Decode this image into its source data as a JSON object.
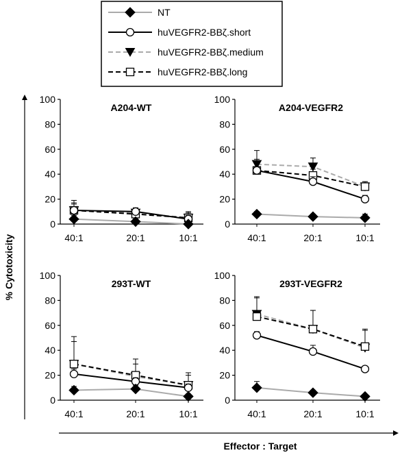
{
  "legend": {
    "entries": [
      {
        "name": "NT",
        "color": "#aaaaaa",
        "marker": "diamond",
        "marker_fill": "#000000",
        "dash": "solid"
      },
      {
        "name": "huVEGFR2-BBζ.short",
        "color": "#000000",
        "marker": "circle",
        "marker_fill": "#ffffff",
        "dash": "solid"
      },
      {
        "name": "huVEGFR2-BBζ.medium",
        "color": "#aaaaaa",
        "marker": "triangle-down",
        "marker_fill": "#000000",
        "dash": "dashed"
      },
      {
        "name": "huVEGFR2-BBζ.long",
        "color": "#000000",
        "marker": "square",
        "marker_fill": "#ffffff",
        "dash": "dashed"
      }
    ]
  },
  "ylabel": "% Cytotoxicity",
  "xlabel": "Effector : Target",
  "chart_data": [
    {
      "type": "line",
      "title": "A204-WT",
      "categories": [
        "40:1",
        "20:1",
        "10:1"
      ],
      "ylim": [
        0,
        100
      ],
      "yticks": [
        0,
        20,
        40,
        60,
        80,
        100
      ],
      "series": [
        {
          "name": "NT",
          "values": [
            4,
            2,
            -2
          ],
          "errors": [
            3,
            2,
            2
          ]
        },
        {
          "name": "huVEGFR2-BBζ.short",
          "values": [
            11,
            10,
            4
          ],
          "errors": [
            6,
            3,
            3
          ]
        },
        {
          "name": "huVEGFR2-BBζ.medium",
          "values": [
            11,
            9,
            5
          ],
          "errors": [
            8,
            4,
            5
          ]
        },
        {
          "name": "huVEGFR2-BBζ.long",
          "values": [
            11,
            8,
            5
          ],
          "errors": [
            5,
            3,
            4
          ]
        }
      ]
    },
    {
      "type": "line",
      "title": "A204-VEGFR2",
      "categories": [
        "40:1",
        "20:1",
        "10:1"
      ],
      "ylim": [
        0,
        100
      ],
      "yticks": [
        0,
        20,
        40,
        60,
        80,
        100
      ],
      "series": [
        {
          "name": "NT",
          "values": [
            8,
            6,
            5
          ],
          "errors": [
            2,
            2,
            3
          ]
        },
        {
          "name": "huVEGFR2-BBζ.short",
          "values": [
            43,
            34,
            20
          ],
          "errors": [
            3,
            4,
            3
          ]
        },
        {
          "name": "huVEGFR2-BBζ.medium",
          "values": [
            48,
            46,
            30
          ],
          "errors": [
            11,
            7,
            4
          ]
        },
        {
          "name": "huVEGFR2-BBζ.long",
          "values": [
            43,
            39,
            30
          ],
          "errors": [
            9,
            5,
            4
          ]
        }
      ]
    },
    {
      "type": "line",
      "title": "293T-WT",
      "categories": [
        "40:1",
        "20:1",
        "10:1"
      ],
      "ylim": [
        0,
        100
      ],
      "yticks": [
        0,
        20,
        40,
        60,
        80,
        100
      ],
      "series": [
        {
          "name": "NT",
          "values": [
            8,
            9,
            3
          ],
          "errors": [
            3,
            3,
            2
          ]
        },
        {
          "name": "huVEGFR2-BBζ.short",
          "values": [
            21,
            15,
            10
          ],
          "errors": [
            4,
            3,
            3
          ]
        },
        {
          "name": "huVEGFR2-BBζ.medium",
          "values": [
            29,
            19,
            12
          ],
          "errors": [
            22,
            10,
            8
          ]
        },
        {
          "name": "huVEGFR2-BBζ.long",
          "values": [
            29,
            20,
            12
          ],
          "errors": [
            18,
            13,
            10
          ]
        }
      ]
    },
    {
      "type": "line",
      "title": "293T-VEGFR2",
      "categories": [
        "40:1",
        "20:1",
        "10:1"
      ],
      "ylim": [
        0,
        100
      ],
      "yticks": [
        0,
        20,
        40,
        60,
        80,
        100
      ],
      "series": [
        {
          "name": "NT",
          "values": [
            10,
            6,
            3
          ],
          "errors": [
            5,
            2,
            1
          ]
        },
        {
          "name": "huVEGFR2-BBζ.short",
          "values": [
            52,
            39,
            25
          ],
          "errors": [
            3,
            5,
            2
          ]
        },
        {
          "name": "huVEGFR2-BBζ.medium",
          "values": [
            69,
            57,
            42
          ],
          "errors": [
            14,
            15,
            15
          ]
        },
        {
          "name": "huVEGFR2-BBζ.long",
          "values": [
            67,
            57,
            43
          ],
          "errors": [
            15,
            15,
            13
          ]
        }
      ]
    }
  ]
}
